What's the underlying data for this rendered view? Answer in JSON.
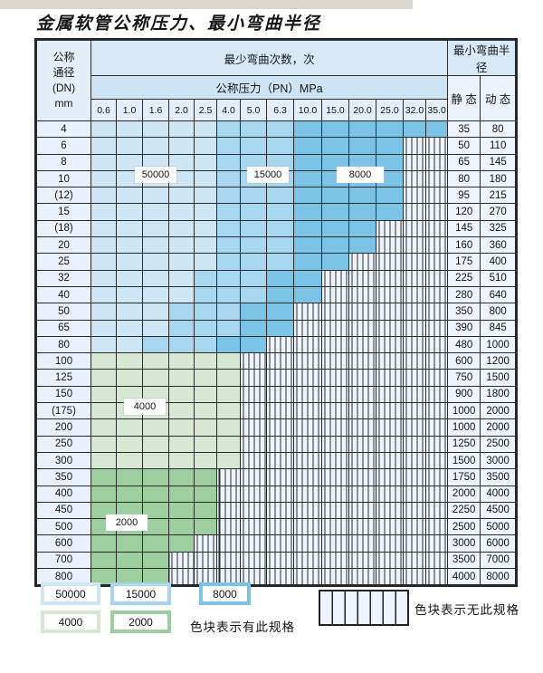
{
  "title": "金属软管公称压力、最小弯曲半径",
  "colors": {
    "c50000": "#cfe6f6",
    "c15000": "#a9d6ef",
    "c8000": "#7cc3e8",
    "c4000": "#d8e9d3",
    "c2000": "#9dce9f"
  },
  "table": {
    "header": {
      "dn_label_lines": [
        "公称",
        "通径",
        "(DN)",
        "mm"
      ],
      "cycles_label": "最少弯曲次数，次",
      "pressure_label": "公称压力（PN）MPa",
      "radius_label": "最小弯曲半径",
      "static_label": "静 态",
      "dynamic_label": "动 态",
      "pressures": [
        "0.6",
        "1.0",
        "1.6",
        "2.0",
        "2.5",
        "4.0",
        "5.0",
        "6.3",
        "10.0",
        "15.0",
        "20.0",
        "25.0",
        "32.0",
        "35.0"
      ]
    },
    "rows": [
      {
        "dn": "4",
        "static": "35",
        "dynamic": "80",
        "bands": [
          [
            "c50",
            0,
            4
          ],
          [
            "c15",
            5,
            7
          ],
          [
            "c80",
            8,
            13
          ]
        ]
      },
      {
        "dn": "6",
        "static": "50",
        "dynamic": "110",
        "bands": [
          [
            "c50",
            0,
            4
          ],
          [
            "c15",
            5,
            7
          ],
          [
            "c80",
            8,
            11
          ]
        ]
      },
      {
        "dn": "8",
        "static": "65",
        "dynamic": "145",
        "bands": [
          [
            "c50",
            0,
            4
          ],
          [
            "c15",
            5,
            7
          ],
          [
            "c80",
            8,
            11
          ]
        ]
      },
      {
        "dn": "10",
        "static": "80",
        "dynamic": "180",
        "bands": [
          [
            "c50",
            0,
            4
          ],
          [
            "c15",
            5,
            7
          ],
          [
            "c80",
            8,
            11
          ]
        ]
      },
      {
        "dn": "(12)",
        "static": "95",
        "dynamic": "215",
        "bands": [
          [
            "c50",
            0,
            4
          ],
          [
            "c15",
            5,
            7
          ],
          [
            "c80",
            8,
            11
          ]
        ]
      },
      {
        "dn": "15",
        "static": "120",
        "dynamic": "270",
        "bands": [
          [
            "c50",
            0,
            4
          ],
          [
            "c15",
            5,
            7
          ],
          [
            "c80",
            8,
            11
          ]
        ]
      },
      {
        "dn": "(18)",
        "static": "145",
        "dynamic": "325",
        "bands": [
          [
            "c50",
            0,
            4
          ],
          [
            "c15",
            5,
            7
          ],
          [
            "c80",
            8,
            10
          ]
        ]
      },
      {
        "dn": "20",
        "static": "160",
        "dynamic": "360",
        "bands": [
          [
            "c50",
            0,
            4
          ],
          [
            "c15",
            5,
            7
          ],
          [
            "c80",
            8,
            10
          ]
        ]
      },
      {
        "dn": "25",
        "static": "175",
        "dynamic": "400",
        "bands": [
          [
            "c50",
            0,
            4
          ],
          [
            "c15",
            5,
            7
          ],
          [
            "c80",
            8,
            9
          ]
        ]
      },
      {
        "dn": "32",
        "static": "225",
        "dynamic": "510",
        "bands": [
          [
            "c50",
            0,
            3
          ],
          [
            "c15",
            4,
            6
          ],
          [
            "c80",
            7,
            8
          ]
        ]
      },
      {
        "dn": "40",
        "static": "280",
        "dynamic": "640",
        "bands": [
          [
            "c50",
            0,
            3
          ],
          [
            "c15",
            4,
            6
          ],
          [
            "c80",
            7,
            8
          ]
        ]
      },
      {
        "dn": "50",
        "static": "350",
        "dynamic": "800",
        "bands": [
          [
            "c50",
            0,
            2
          ],
          [
            "c15",
            3,
            5
          ],
          [
            "c80",
            6,
            7
          ]
        ]
      },
      {
        "dn": "65",
        "static": "390",
        "dynamic": "845",
        "bands": [
          [
            "c50",
            0,
            2
          ],
          [
            "c15",
            3,
            5
          ],
          [
            "c80",
            6,
            7
          ]
        ]
      },
      {
        "dn": "80",
        "static": "480",
        "dynamic": "1000",
        "bands": [
          [
            "c50",
            0,
            1
          ],
          [
            "c15",
            2,
            4
          ],
          [
            "c80",
            5,
            6
          ]
        ]
      },
      {
        "dn": "100",
        "static": "600",
        "dynamic": "1200",
        "bands": [
          [
            "g40",
            0,
            5
          ]
        ]
      },
      {
        "dn": "125",
        "static": "750",
        "dynamic": "1500",
        "bands": [
          [
            "g40",
            0,
            5
          ]
        ]
      },
      {
        "dn": "150",
        "static": "900",
        "dynamic": "1800",
        "bands": [
          [
            "g40",
            0,
            5
          ]
        ]
      },
      {
        "dn": "(175)",
        "static": "1000",
        "dynamic": "2000",
        "bands": [
          [
            "g40",
            0,
            5
          ]
        ]
      },
      {
        "dn": "200",
        "static": "1000",
        "dynamic": "2000",
        "bands": [
          [
            "g40",
            0,
            5
          ]
        ]
      },
      {
        "dn": "250",
        "static": "1250",
        "dynamic": "2500",
        "bands": [
          [
            "g40",
            0,
            5
          ]
        ]
      },
      {
        "dn": "300",
        "static": "1500",
        "dynamic": "3000",
        "bands": [
          [
            "g40",
            0,
            5
          ]
        ]
      },
      {
        "dn": "350",
        "static": "1750",
        "dynamic": "3500",
        "bands": [
          [
            "g20",
            0,
            4
          ]
        ]
      },
      {
        "dn": "400",
        "static": "2000",
        "dynamic": "4000",
        "bands": [
          [
            "g20",
            0,
            4
          ]
        ]
      },
      {
        "dn": "450",
        "static": "2250",
        "dynamic": "4500",
        "bands": [
          [
            "g20",
            0,
            4
          ]
        ]
      },
      {
        "dn": "500",
        "static": "2500",
        "dynamic": "5000",
        "bands": [
          [
            "g20",
            0,
            4
          ]
        ]
      },
      {
        "dn": "600",
        "static": "3000",
        "dynamic": "6000",
        "bands": [
          [
            "g20",
            0,
            3
          ]
        ]
      },
      {
        "dn": "700",
        "static": "3500",
        "dynamic": "7000",
        "bands": [
          [
            "g20",
            0,
            2
          ]
        ]
      },
      {
        "dn": "800",
        "static": "4000",
        "dynamic": "8000",
        "bands": [
          [
            "g20",
            0,
            2
          ]
        ]
      }
    ]
  },
  "overlays": [
    {
      "id": "o50000",
      "label": "50000"
    },
    {
      "id": "o15000",
      "label": "15000"
    },
    {
      "id": "o8000",
      "label": "8000"
    },
    {
      "id": "o4000",
      "label": "4000"
    },
    {
      "id": "o2000",
      "label": "2000"
    }
  ],
  "legend": {
    "items": [
      {
        "label": "50000",
        "color_key": "c50000"
      },
      {
        "label": "15000",
        "color_key": "c15000"
      },
      {
        "label": "8000",
        "color_key": "c8000"
      },
      {
        "label": "4000",
        "color_key": "c4000"
      },
      {
        "label": "2000",
        "color_key": "c2000"
      }
    ],
    "note_has": "色块表示有此规格",
    "note_none": "色块表示无此规格"
  }
}
